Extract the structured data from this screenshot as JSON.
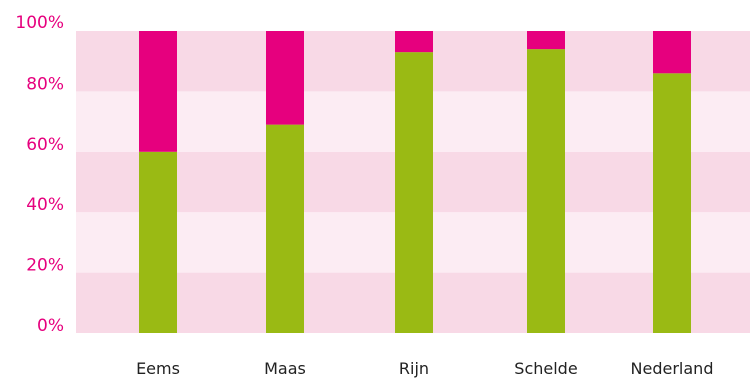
{
  "chart_data": {
    "type": "bar",
    "stacked": true,
    "categories": [
      "Eems",
      "Maas",
      "Rijn",
      "Schelde",
      "Nederland"
    ],
    "series": [
      {
        "values": [
          60,
          69,
          93,
          94,
          86
        ],
        "color": "#9aba14"
      },
      {
        "values": [
          40,
          31,
          7,
          6,
          14
        ],
        "color": "#e6007e"
      }
    ],
    "yticks": [
      "0%",
      "20%",
      "40%",
      "60%",
      "80%",
      "100%"
    ],
    "ylim": [
      0,
      100
    ],
    "grid": "alternating-bands",
    "band_colors": [
      "#f8d9e6",
      "#fcecf3"
    ],
    "label_color": "#e6007e"
  }
}
